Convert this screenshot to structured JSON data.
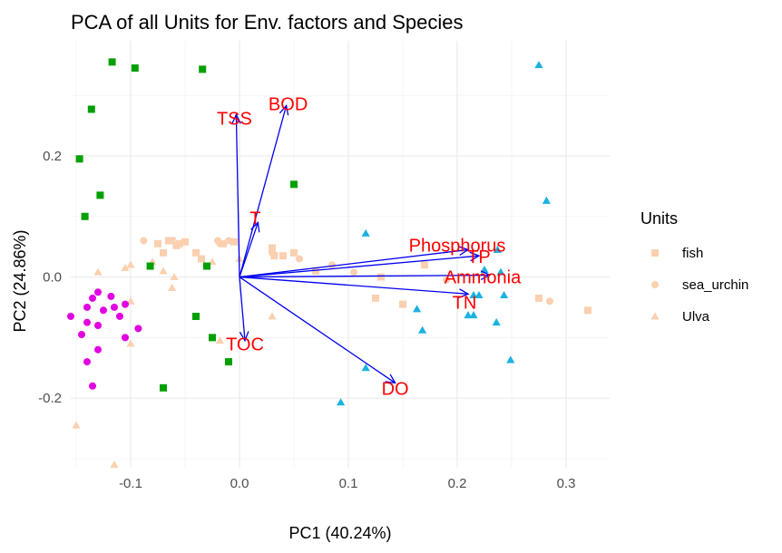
{
  "chart_data": {
    "type": "scatter",
    "title": "PCA of all Units for Env. factors and Species",
    "xlabel": "PC1 (40.24%)",
    "ylabel": "PC2 (24.86%)",
    "xlim": [
      -0.155,
      0.34
    ],
    "ylim": [
      -0.315,
      0.39
    ],
    "x_ticks": [
      -0.1,
      0.0,
      0.1,
      0.2,
      0.3
    ],
    "x_tick_labels": [
      "-0.1",
      "0.0",
      "0.1",
      "0.2",
      "0.3"
    ],
    "y_ticks": [
      -0.2,
      0.0,
      0.2
    ],
    "y_tick_labels": [
      "-0.2",
      "0.0",
      "0.2"
    ],
    "grid": true,
    "legend": {
      "title": "Units",
      "position": "right",
      "entries": [
        {
          "label": "fish",
          "color": "#fad0b0",
          "shape": "square"
        },
        {
          "label": "sea_urchin",
          "color": "#fad0b0",
          "shape": "circle"
        },
        {
          "label": "Ulva",
          "color": "#fad0b0",
          "shape": "triangle"
        }
      ]
    },
    "point_groups": [
      {
        "color": "#fad0b0",
        "shape": "square",
        "points": [
          {
            "x": -0.075,
            "y": 0.055
          },
          {
            "x": -0.065,
            "y": 0.06
          },
          {
            "x": -0.062,
            "y": 0.06
          },
          {
            "x": -0.058,
            "y": 0.052
          },
          {
            "x": -0.055,
            "y": 0.055
          },
          {
            "x": -0.05,
            "y": 0.058
          },
          {
            "x": -0.07,
            "y": 0.04
          },
          {
            "x": -0.04,
            "y": 0.04
          },
          {
            "x": -0.035,
            "y": 0.03
          },
          {
            "x": -0.015,
            "y": 0.055
          },
          {
            "x": -0.005,
            "y": 0.058
          },
          {
            "x": 0.03,
            "y": 0.048
          },
          {
            "x": 0.04,
            "y": 0.035
          },
          {
            "x": 0.032,
            "y": 0.035
          },
          {
            "x": 0.07,
            "y": 0.01
          },
          {
            "x": 0.13,
            "y": 0.0
          },
          {
            "x": 0.125,
            "y": -0.035
          },
          {
            "x": 0.15,
            "y": -0.045
          },
          {
            "x": 0.275,
            "y": -0.035
          },
          {
            "x": 0.32,
            "y": -0.055
          },
          {
            "x": 0.17,
            "y": 0.02
          },
          {
            "x": 0.05,
            "y": 0.04
          }
        ]
      },
      {
        "color": "#fad0b0",
        "shape": "circle",
        "points": [
          {
            "x": -0.088,
            "y": 0.06
          },
          {
            "x": -0.02,
            "y": 0.06
          },
          {
            "x": -0.018,
            "y": 0.055
          },
          {
            "x": -0.01,
            "y": 0.06
          },
          {
            "x": 0.03,
            "y": 0.04
          },
          {
            "x": 0.085,
            "y": 0.02
          },
          {
            "x": 0.105,
            "y": 0.008
          },
          {
            "x": 0.19,
            "y": -0.005
          },
          {
            "x": 0.285,
            "y": -0.04
          },
          {
            "x": 0.055,
            "y": 0.03
          }
        ]
      },
      {
        "color": "#fad0b0",
        "shape": "triangle",
        "points": [
          {
            "x": -0.1,
            "y": 0.02
          },
          {
            "x": -0.105,
            "y": 0.015
          },
          {
            "x": -0.08,
            "y": 0.025
          },
          {
            "x": -0.07,
            "y": 0.01
          },
          {
            "x": -0.06,
            "y": 0.0
          },
          {
            "x": -0.062,
            "y": -0.018
          },
          {
            "x": -0.025,
            "y": 0.025
          },
          {
            "x": 0.0,
            "y": 0.03
          },
          {
            "x": 0.03,
            "y": -0.065
          },
          {
            "x": -0.018,
            "y": -0.105
          },
          {
            "x": -0.1,
            "y": -0.11
          },
          {
            "x": -0.15,
            "y": -0.245
          },
          {
            "x": -0.115,
            "y": -0.31
          },
          {
            "x": -0.13,
            "y": 0.008
          },
          {
            "x": -0.1,
            "y": -0.04
          }
        ]
      },
      {
        "color": "#00a000",
        "shape": "square",
        "points": [
          {
            "x": -0.117,
            "y": 0.355
          },
          {
            "x": -0.096,
            "y": 0.345
          },
          {
            "x": -0.034,
            "y": 0.343
          },
          {
            "x": -0.136,
            "y": 0.277
          },
          {
            "x": -0.147,
            "y": 0.195
          },
          {
            "x": -0.128,
            "y": 0.135
          },
          {
            "x": -0.142,
            "y": 0.1
          },
          {
            "x": -0.082,
            "y": 0.018
          },
          {
            "x": -0.03,
            "y": 0.018
          },
          {
            "x": -0.04,
            "y": -0.065
          },
          {
            "x": -0.025,
            "y": -0.1
          },
          {
            "x": -0.01,
            "y": -0.14
          },
          {
            "x": -0.07,
            "y": -0.183
          },
          {
            "x": 0.05,
            "y": 0.153
          }
        ]
      },
      {
        "color": "#e000e0",
        "shape": "circle",
        "points": [
          {
            "x": -0.135,
            "y": -0.035
          },
          {
            "x": -0.13,
            "y": -0.025
          },
          {
            "x": -0.118,
            "y": -0.032
          },
          {
            "x": -0.105,
            "y": -0.045
          },
          {
            "x": -0.155,
            "y": -0.065
          },
          {
            "x": -0.14,
            "y": -0.05
          },
          {
            "x": -0.125,
            "y": -0.055
          },
          {
            "x": -0.11,
            "y": -0.065
          },
          {
            "x": -0.14,
            "y": -0.075
          },
          {
            "x": -0.13,
            "y": -0.08
          },
          {
            "x": -0.093,
            "y": -0.085
          },
          {
            "x": -0.145,
            "y": -0.095
          },
          {
            "x": -0.105,
            "y": -0.1
          },
          {
            "x": -0.13,
            "y": -0.12
          },
          {
            "x": -0.14,
            "y": -0.14
          },
          {
            "x": -0.135,
            "y": -0.18
          },
          {
            "x": -0.115,
            "y": -0.05
          }
        ]
      },
      {
        "color": "#1ab2e0",
        "shape": "triangle",
        "points": [
          {
            "x": 0.275,
            "y": 0.35
          },
          {
            "x": 0.282,
            "y": 0.126
          },
          {
            "x": 0.116,
            "y": 0.072
          },
          {
            "x": 0.225,
            "y": 0.012
          },
          {
            "x": 0.237,
            "y": 0.045
          },
          {
            "x": 0.24,
            "y": 0.008
          },
          {
            "x": 0.215,
            "y": -0.03
          },
          {
            "x": 0.22,
            "y": -0.03
          },
          {
            "x": 0.243,
            "y": -0.03
          },
          {
            "x": 0.163,
            "y": -0.053
          },
          {
            "x": 0.21,
            "y": -0.063
          },
          {
            "x": 0.215,
            "y": -0.063
          },
          {
            "x": 0.236,
            "y": -0.075
          },
          {
            "x": 0.168,
            "y": -0.088
          },
          {
            "x": 0.116,
            "y": -0.15
          },
          {
            "x": 0.249,
            "y": -0.137
          },
          {
            "x": 0.093,
            "y": -0.207
          }
        ]
      }
    ],
    "loadings": [
      {
        "label": "TSS",
        "x": -0.003,
        "y": 0.268
      },
      {
        "label": "BOD",
        "x": 0.043,
        "y": 0.283
      },
      {
        "label": "T",
        "x": 0.017,
        "y": 0.09
      },
      {
        "label": "Phosphorus",
        "x": 0.21,
        "y": 0.045
      },
      {
        "label": "TP",
        "x": 0.22,
        "y": 0.035
      },
      {
        "label": "Ammonia",
        "x": 0.23,
        "y": 0.003
      },
      {
        "label": "TN",
        "x": 0.21,
        "y": -0.028
      },
      {
        "label": "TOC",
        "x": 0.005,
        "y": -0.105
      },
      {
        "label": "DO",
        "x": 0.143,
        "y": -0.175
      }
    ]
  }
}
